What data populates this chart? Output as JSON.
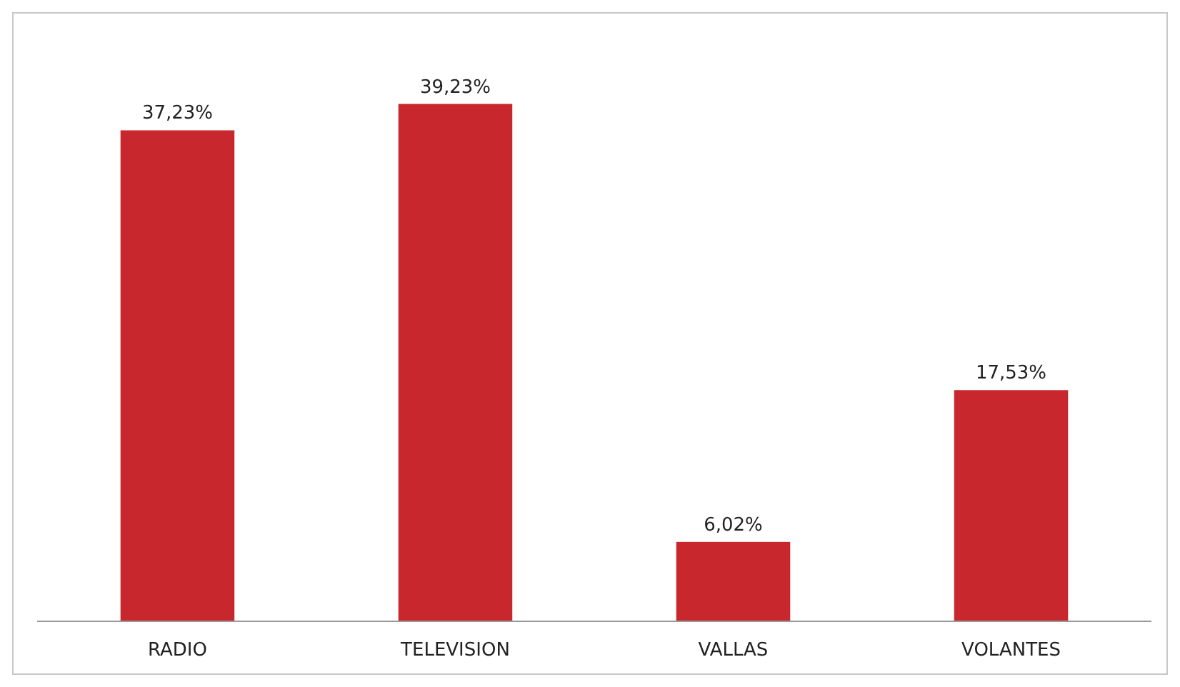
{
  "chart_data": {
    "type": "bar",
    "categories": [
      "RADIO",
      "TELEVISION",
      "VALLAS",
      "VOLANTES"
    ],
    "values": [
      37.23,
      39.23,
      6.02,
      17.53
    ],
    "value_labels": [
      "37,23%",
      "39,23%",
      "6,02%",
      "17,53%"
    ],
    "color": "#c8282d"
  }
}
